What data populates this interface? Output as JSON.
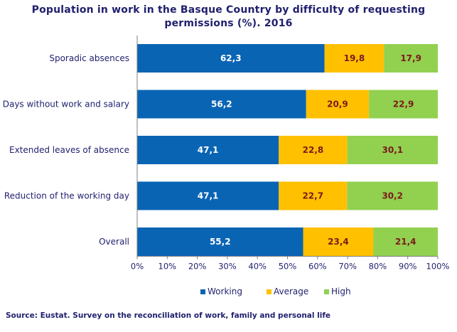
{
  "chart_data": {
    "type": "bar",
    "orientation": "horizontal",
    "stacked": true,
    "title": "Population in work in the Basque Country by difficulty of requesting permissions (%). 2016",
    "categories": [
      "Sporadic absences",
      "Days without work and salary",
      "Extended leaves of absence",
      "Reduction of the working day",
      "Overall"
    ],
    "series": [
      {
        "name": "Working",
        "color": "#0a64b4",
        "label_color": "#ffffff",
        "values": [
          62.3,
          56.2,
          47.1,
          47.1,
          55.2
        ],
        "labels": [
          "62,3",
          "56,2",
          "47,1",
          "47,1",
          "55,2"
        ]
      },
      {
        "name": "Average",
        "color": "#ffc000",
        "label_color": "#7a1a1a",
        "values": [
          19.8,
          20.9,
          22.8,
          22.7,
          23.4
        ],
        "labels": [
          "19,8",
          "20,9",
          "22,8",
          "22,7",
          "23,4"
        ]
      },
      {
        "name": "High",
        "color": "#92d050",
        "label_color": "#7a1a1a",
        "values": [
          17.9,
          22.9,
          30.1,
          30.2,
          21.4
        ],
        "labels": [
          "17,9",
          "22,9",
          "30,1",
          "30,2",
          "21,4"
        ]
      }
    ],
    "xlim": [
      0,
      100
    ],
    "x_ticks": [
      "0%",
      "10%",
      "20%",
      "30%",
      "40%",
      "50%",
      "60%",
      "70%",
      "80%",
      "90%",
      "100%"
    ],
    "grid": false,
    "legend_position": "bottom"
  },
  "source": "Source: Eustat. Survey on the reconciliation of work, family and personal life"
}
